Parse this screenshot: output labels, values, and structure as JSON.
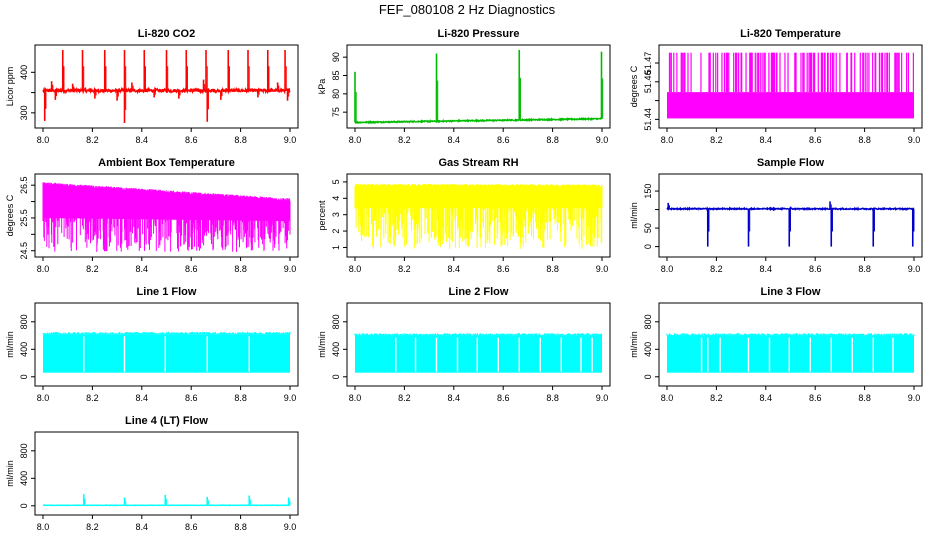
{
  "page_title": "FEF_080108  2 Hz Diagnostics",
  "x_ticks": [
    "8.0",
    "8.2",
    "8.4",
    "8.6",
    "8.8",
    "9.0"
  ],
  "chart_data": [
    {
      "type": "line",
      "title": "Li-820 CO2",
      "ylabel": "Licor ppm",
      "color": "#ff0000",
      "xlim": [
        8.0,
        9.0
      ],
      "ylim": [
        270,
        460
      ],
      "yticks": [
        300,
        350,
        400
      ],
      "yticklabels": [
        "300",
        "",
        "400"
      ],
      "style": "spiky",
      "baseline": 355,
      "noise": 4,
      "spikes_up": [
        [
          8.08,
          455
        ],
        [
          8.16,
          455
        ],
        [
          8.25,
          455
        ],
        [
          8.33,
          455
        ],
        [
          8.41,
          455
        ],
        [
          8.5,
          455
        ],
        [
          8.58,
          455
        ],
        [
          8.66,
          455
        ],
        [
          8.75,
          455
        ],
        [
          8.83,
          455
        ],
        [
          8.91,
          455
        ],
        [
          8.98,
          455
        ],
        [
          8.035,
          378
        ],
        [
          8.12,
          372
        ],
        [
          8.36,
          375
        ],
        [
          8.65,
          382
        ],
        [
          8.95,
          375
        ]
      ],
      "spikes_down": [
        [
          8.007,
          280
        ],
        [
          8.33,
          275
        ],
        [
          8.665,
          278
        ],
        [
          8.99,
          330
        ],
        [
          8.05,
          332
        ],
        [
          8.21,
          335
        ],
        [
          8.3,
          330
        ],
        [
          8.45,
          338
        ],
        [
          8.55,
          335
        ],
        [
          8.72,
          332
        ],
        [
          8.87,
          338
        ]
      ]
    },
    {
      "type": "line",
      "title": "Li-820 Pressure",
      "ylabel": "kPa",
      "color": "#00bb00",
      "xlim": [
        8.0,
        9.0
      ],
      "ylim": [
        71.5,
        92.5
      ],
      "yticks": [
        75,
        80,
        85,
        90
      ],
      "yticklabels": [
        "75",
        "80",
        "85",
        "90"
      ],
      "style": "drift",
      "start": 72.2,
      "end": 73.2,
      "noise": 0.15,
      "spikes_up": [
        [
          8.0,
          86
        ],
        [
          8.33,
          91
        ],
        [
          8.665,
          92
        ],
        [
          8.998,
          91.5
        ]
      ],
      "spikes_down": []
    },
    {
      "type": "line",
      "title": "Li-820 Temperature",
      "ylabel": "degrees C",
      "color": "#ff00ff",
      "xlim": [
        8.0,
        9.0
      ],
      "ylim": [
        51.437,
        51.478
      ],
      "yticks": [
        51.44,
        51.45,
        51.46,
        51.47
      ],
      "yticklabels": [
        "51.44",
        "",
        "51.46",
        "51.47"
      ],
      "style": "quantized",
      "levels": [
        51.4405,
        51.4545,
        51.4755
      ],
      "spike_prob": 0.28
    },
    {
      "type": "line",
      "title": "Ambient Box Temperature",
      "ylabel": "degrees C",
      "color": "#ff00ff",
      "xlim": [
        8.0,
        9.0
      ],
      "ylim": [
        24.4,
        26.75
      ],
      "yticks": [
        24.5,
        25.0,
        25.5,
        26.0,
        26.5
      ],
      "yticklabels": [
        "24.5",
        "",
        "25.5",
        "",
        "26.5"
      ],
      "style": "band",
      "start_top": 26.55,
      "end_top": 26.05,
      "start_bot": 25.5,
      "end_bot": 25.4,
      "dip_min": 24.45
    },
    {
      "type": "line",
      "title": "Gas Stream RH",
      "ylabel": "percent",
      "color": "#ffff00",
      "xlim": [
        8.0,
        9.0
      ],
      "ylim": [
        0.6,
        5.3
      ],
      "yticks": [
        1,
        2,
        3,
        4,
        5
      ],
      "yticklabels": [
        "1",
        "2",
        "3",
        "4",
        "5"
      ],
      "style": "band",
      "start_top": 4.8,
      "end_top": 4.75,
      "start_bot": 3.4,
      "end_bot": 3.4,
      "dip_min": 0.9
    },
    {
      "type": "line",
      "title": "Sample Flow",
      "ylabel": "ml/min",
      "color": "#0000cc",
      "xlim": [
        8.0,
        9.0
      ],
      "ylim": [
        -20,
        188
      ],
      "yticks": [
        0,
        50,
        100,
        150
      ],
      "yticklabels": [
        "0",
        "50",
        "",
        "150"
      ],
      "style": "spiky",
      "baseline": 102,
      "noise": 1.5,
      "spikes_up": [
        [
          8.005,
          118
        ],
        [
          8.66,
          122
        ],
        [
          8.5,
          108
        ]
      ],
      "spikes_down": [
        [
          8.165,
          0
        ],
        [
          8.33,
          0
        ],
        [
          8.495,
          0
        ],
        [
          8.665,
          0
        ],
        [
          8.835,
          0
        ],
        [
          8.995,
          0
        ]
      ]
    },
    {
      "type": "line",
      "title": "Line 1 Flow",
      "ylabel": "ml/min",
      "color": "#00ffff",
      "xlim": [
        8.0,
        9.0
      ],
      "ylim": [
        -90,
        1030
      ],
      "yticks": [
        0,
        400,
        800
      ],
      "yticklabels": [
        "0",
        "400",
        "800"
      ],
      "style": "block",
      "top": 620,
      "bottom": 60,
      "gaps": [
        8.165,
        8.33,
        8.495,
        8.665,
        8.835
      ]
    },
    {
      "type": "line",
      "title": "Line 2 Flow",
      "ylabel": "ml/min",
      "color": "#00ffff",
      "xlim": [
        8.0,
        9.0
      ],
      "ylim": [
        -90,
        1030
      ],
      "yticks": [
        0,
        400,
        800
      ],
      "yticklabels": [
        "0",
        "400",
        "800"
      ],
      "style": "block",
      "top": 600,
      "bottom": 60,
      "gaps": [
        8.165,
        8.245,
        8.33,
        8.415,
        8.495,
        8.58,
        8.665,
        8.75,
        8.835,
        8.915,
        8.96
      ]
    },
    {
      "type": "line",
      "title": "Line 3 Flow",
      "ylabel": "ml/min",
      "color": "#00ffff",
      "xlim": [
        8.0,
        9.0
      ],
      "ylim": [
        -90,
        1030
      ],
      "yticks": [
        0,
        400,
        800
      ],
      "yticklabels": [
        "0",
        "400",
        "800"
      ],
      "style": "block",
      "top": 600,
      "bottom": 60,
      "gaps": [
        8.14,
        8.165,
        8.215,
        8.33,
        8.415,
        8.495,
        8.58,
        8.665,
        8.75,
        8.835,
        8.915
      ]
    },
    {
      "type": "line",
      "title": "Line 4 (LT) Flow",
      "ylabel": "ml/min",
      "color": "#00ffff",
      "xlim": [
        8.0,
        9.0
      ],
      "ylim": [
        -90,
        1030
      ],
      "yticks": [
        0,
        400,
        800
      ],
      "yticklabels": [
        "0",
        "400",
        "800"
      ],
      "style": "spiky",
      "baseline": 8,
      "noise": 2,
      "spikes_up": [
        [
          8.165,
          170
        ],
        [
          8.33,
          120
        ],
        [
          8.495,
          160
        ],
        [
          8.665,
          130
        ],
        [
          8.835,
          150
        ],
        [
          8.995,
          120
        ]
      ],
      "spikes_down": []
    }
  ]
}
